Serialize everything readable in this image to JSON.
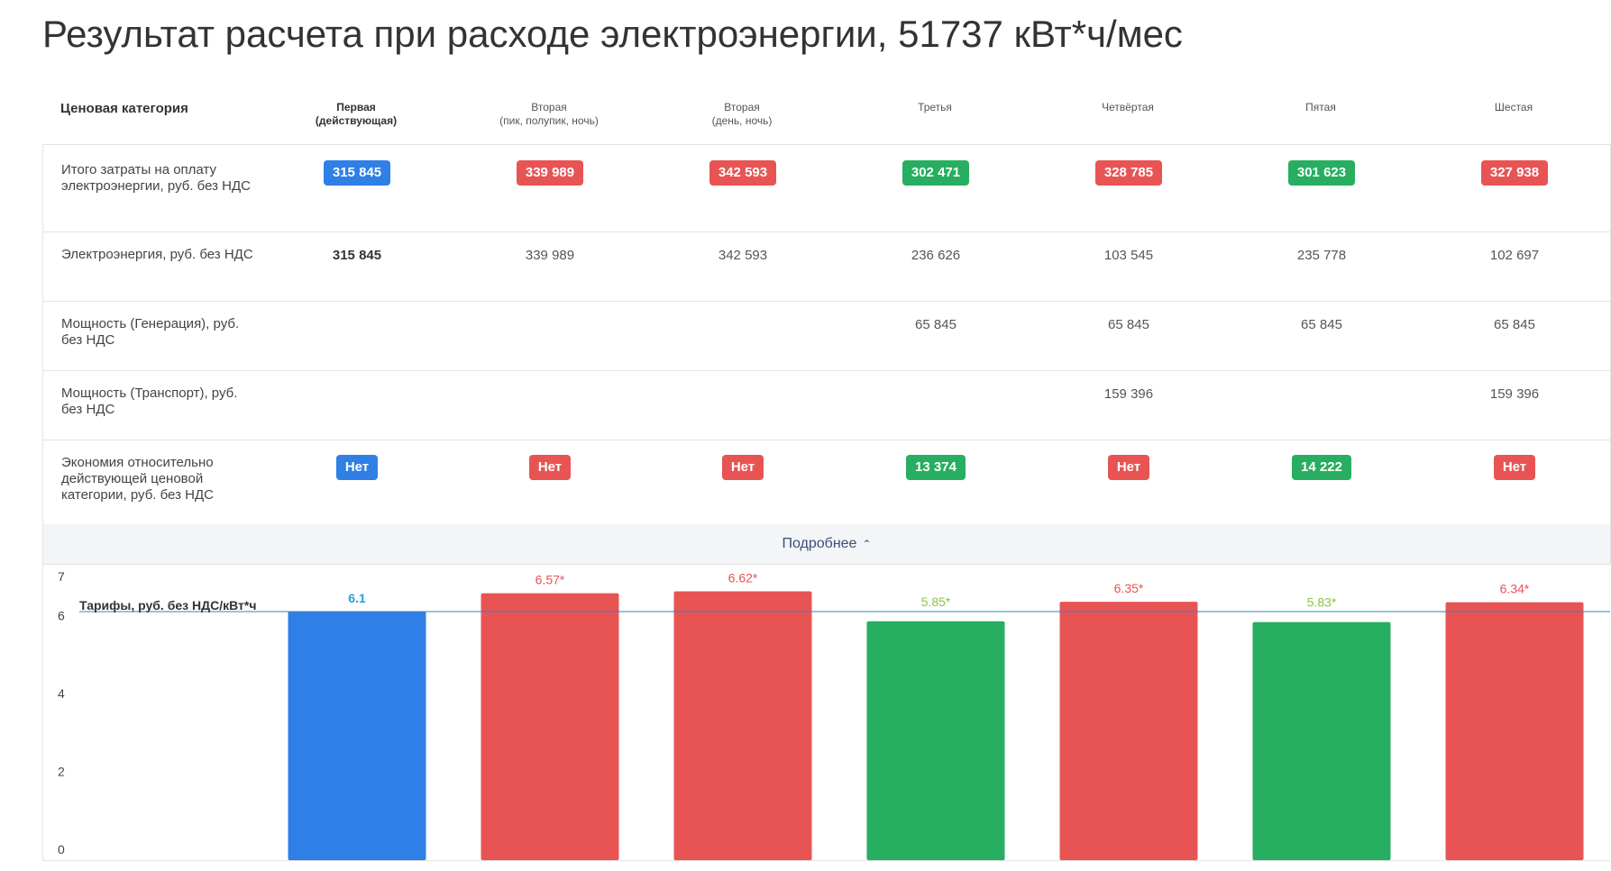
{
  "page": {
    "title": "Результат расчета при расходе электроэнергии, 51737 кВт*ч/мес"
  },
  "colors": {
    "blue": "#2f7fe6",
    "red": "#e85454",
    "green": "#27ae60",
    "green_label": "#8bc34a",
    "ref_line": "#3a7fc1"
  },
  "header": {
    "label": "Ценовая категория",
    "columns": [
      {
        "line1": "Первая",
        "line2": "(действующая)",
        "active": true
      },
      {
        "line1": "Вторая",
        "line2": "(пик, полупик, ночь)",
        "active": false
      },
      {
        "line1": "Вторая",
        "line2": "(день, ночь)",
        "active": false
      },
      {
        "line1": "Третья",
        "line2": "",
        "active": false
      },
      {
        "line1": "Четвёртая",
        "line2": "",
        "active": false
      },
      {
        "line1": "Пятая",
        "line2": "",
        "active": false
      },
      {
        "line1": "Шестая",
        "line2": "",
        "active": false
      }
    ]
  },
  "rows": [
    {
      "label": "Итого затраты на оплату электроэнергии, руб. без НДС",
      "cells": [
        {
          "text": "315 845",
          "badge": "blue"
        },
        {
          "text": "339 989",
          "badge": "red"
        },
        {
          "text": "342 593",
          "badge": "red"
        },
        {
          "text": "302 471",
          "badge": "green"
        },
        {
          "text": "328 785",
          "badge": "red"
        },
        {
          "text": "301 623",
          "badge": "green"
        },
        {
          "text": "327 938",
          "badge": "red"
        }
      ]
    },
    {
      "label": "Электроэнергия, руб. без НДС",
      "cells": [
        {
          "text": "315 845",
          "bold": true
        },
        {
          "text": "339 989"
        },
        {
          "text": "342 593"
        },
        {
          "text": "236 626"
        },
        {
          "text": "103 545"
        },
        {
          "text": "235 778"
        },
        {
          "text": "102 697"
        }
      ]
    },
    {
      "label": "Мощность (Генерация), руб. без НДС",
      "cells": [
        {
          "text": ""
        },
        {
          "text": ""
        },
        {
          "text": ""
        },
        {
          "text": "65 845"
        },
        {
          "text": "65 845"
        },
        {
          "text": "65 845"
        },
        {
          "text": "65 845"
        }
      ]
    },
    {
      "label": "Мощность (Транспорт), руб. без НДС",
      "cells": [
        {
          "text": ""
        },
        {
          "text": ""
        },
        {
          "text": ""
        },
        {
          "text": ""
        },
        {
          "text": "159 396"
        },
        {
          "text": ""
        },
        {
          "text": "159 396"
        }
      ]
    },
    {
      "label": "Экономия относительно действующей ценовой категории, руб. без НДС",
      "cells": [
        {
          "text": "Нет",
          "badge": "blue"
        },
        {
          "text": "Нет",
          "badge": "red"
        },
        {
          "text": "Нет",
          "badge": "red"
        },
        {
          "text": "13 374",
          "badge": "green"
        },
        {
          "text": "Нет",
          "badge": "red"
        },
        {
          "text": "14 222",
          "badge": "green"
        },
        {
          "text": "Нет",
          "badge": "red"
        }
      ]
    }
  ],
  "more_button": {
    "label": "Подробнее",
    "icon": "chevron-up-icon"
  },
  "chart_data": {
    "type": "bar",
    "title": "Тарифы, руб. без НДС/кВт*ч",
    "categories": [
      "Первая",
      "Вторая (пик, полупик, ночь)",
      "Вторая (день, ночь)",
      "Третья",
      "Четвёртая",
      "Пятая",
      "Шестая"
    ],
    "values": [
      6.1,
      6.57,
      6.62,
      5.85,
      6.35,
      5.83,
      6.34
    ],
    "labels": [
      "6.1",
      "6.57*",
      "6.62*",
      "5.85*",
      "6.35*",
      "5.83*",
      "6.34*"
    ],
    "bar_colors": [
      "blue",
      "red",
      "red",
      "green",
      "red",
      "green",
      "red"
    ],
    "reference_line": 6.1,
    "y_ticks": [
      "0",
      "2",
      "4",
      "6",
      "7"
    ],
    "ylim": [
      0,
      7
    ],
    "grid": false
  }
}
